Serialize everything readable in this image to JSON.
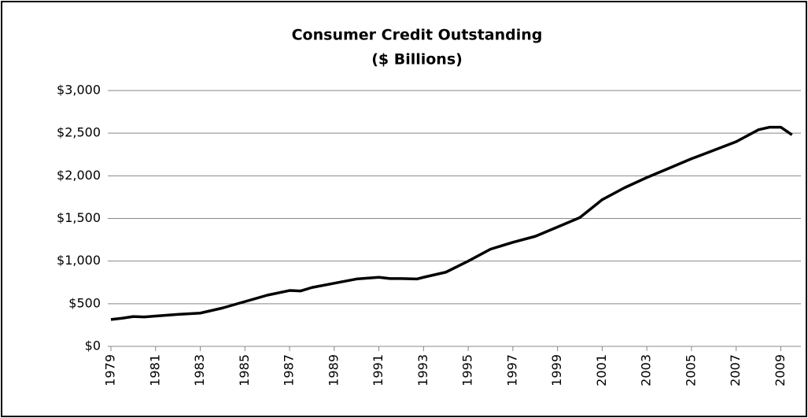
{
  "chart_data": {
    "type": "line",
    "title": "Consumer Credit Outstanding",
    "subtitle": "($ Billions)",
    "x": [
      1979,
      1979.5,
      1980,
      1980.5,
      1981,
      1982,
      1983,
      1984,
      1985,
      1986,
      1987,
      1987.5,
      1988,
      1989,
      1990,
      1991,
      1991.5,
      1992,
      1992.7,
      1993,
      1994,
      1995,
      1996,
      1997,
      1998,
      1999,
      2000,
      2001,
      2002,
      2003,
      2004,
      2005,
      2006,
      2007,
      2008,
      2008.5,
      2009,
      2009.5
    ],
    "series": [
      {
        "name": "Consumer Credit Outstanding",
        "color": "#000000",
        "values": [
          315,
          330,
          350,
          345,
          355,
          375,
          390,
          450,
          525,
          600,
          655,
          650,
          690,
          740,
          790,
          810,
          795,
          795,
          790,
          810,
          870,
          1000,
          1140,
          1220,
          1290,
          1400,
          1510,
          1720,
          1860,
          1980,
          2090,
          2200,
          2300,
          2400,
          2540,
          2570,
          2570,
          2480
        ]
      }
    ],
    "xlim": [
      1979,
      2009.9
    ],
    "xticks": [
      1979,
      1981,
      1983,
      1985,
      1987,
      1989,
      1991,
      1993,
      1995,
      1997,
      1999,
      2001,
      2003,
      2005,
      2007,
      2009
    ],
    "ylim": [
      0,
      3000
    ],
    "yticks": [
      {
        "value": 0,
        "label": "$0"
      },
      {
        "value": 500,
        "label": "$500"
      },
      {
        "value": 1000,
        "label": "$1,000"
      },
      {
        "value": 1500,
        "label": "$1,500"
      },
      {
        "value": 2000,
        "label": "$2,000"
      },
      {
        "value": 2500,
        "label": "$2,500"
      },
      {
        "value": 3000,
        "label": "$3,000"
      }
    ],
    "grid": true
  }
}
